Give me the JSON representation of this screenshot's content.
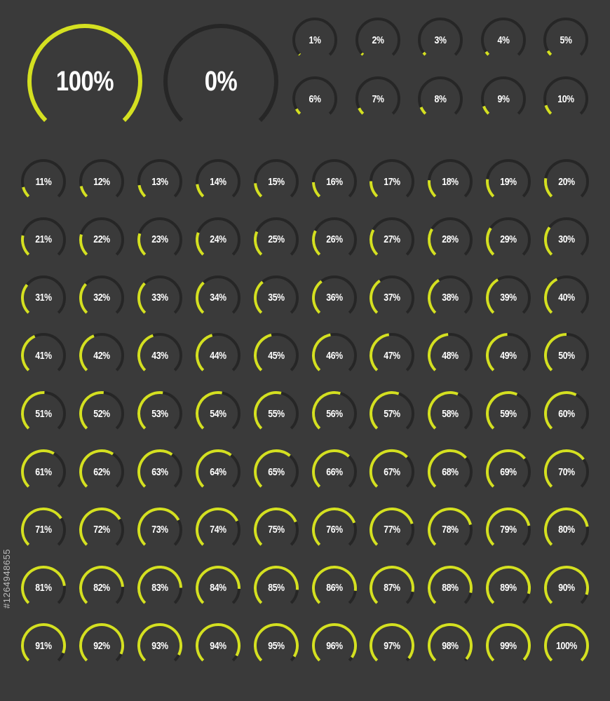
{
  "colors": {
    "background": "#3a3a3a",
    "track": "#262626",
    "progress": "#d4e021",
    "label": "#ffffff"
  },
  "large_gauges": [
    {
      "label": "100%",
      "value": 100
    },
    {
      "label": "0%",
      "value": 0
    }
  ],
  "top_small_gauges": [
    {
      "label": "1%",
      "value": 1
    },
    {
      "label": "2%",
      "value": 2
    },
    {
      "label": "3%",
      "value": 3
    },
    {
      "label": "4%",
      "value": 4
    },
    {
      "label": "5%",
      "value": 5
    },
    {
      "label": "6%",
      "value": 6
    },
    {
      "label": "7%",
      "value": 7
    },
    {
      "label": "8%",
      "value": 8
    },
    {
      "label": "9%",
      "value": 9
    },
    {
      "label": "10%",
      "value": 10
    }
  ],
  "grid_gauges": [
    {
      "label": "11%",
      "value": 11
    },
    {
      "label": "12%",
      "value": 12
    },
    {
      "label": "13%",
      "value": 13
    },
    {
      "label": "14%",
      "value": 14
    },
    {
      "label": "15%",
      "value": 15
    },
    {
      "label": "16%",
      "value": 16
    },
    {
      "label": "17%",
      "value": 17
    },
    {
      "label": "18%",
      "value": 18
    },
    {
      "label": "19%",
      "value": 19
    },
    {
      "label": "20%",
      "value": 20
    },
    {
      "label": "21%",
      "value": 21
    },
    {
      "label": "22%",
      "value": 22
    },
    {
      "label": "23%",
      "value": 23
    },
    {
      "label": "24%",
      "value": 24
    },
    {
      "label": "25%",
      "value": 25
    },
    {
      "label": "26%",
      "value": 26
    },
    {
      "label": "27%",
      "value": 27
    },
    {
      "label": "28%",
      "value": 28
    },
    {
      "label": "29%",
      "value": 29
    },
    {
      "label": "30%",
      "value": 30
    },
    {
      "label": "31%",
      "value": 31
    },
    {
      "label": "32%",
      "value": 32
    },
    {
      "label": "33%",
      "value": 33
    },
    {
      "label": "34%",
      "value": 34
    },
    {
      "label": "35%",
      "value": 35
    },
    {
      "label": "36%",
      "value": 36
    },
    {
      "label": "37%",
      "value": 37
    },
    {
      "label": "38%",
      "value": 38
    },
    {
      "label": "39%",
      "value": 39
    },
    {
      "label": "40%",
      "value": 40
    },
    {
      "label": "41%",
      "value": 41
    },
    {
      "label": "42%",
      "value": 42
    },
    {
      "label": "43%",
      "value": 43
    },
    {
      "label": "44%",
      "value": 44
    },
    {
      "label": "45%",
      "value": 45
    },
    {
      "label": "46%",
      "value": 46
    },
    {
      "label": "47%",
      "value": 47
    },
    {
      "label": "48%",
      "value": 48
    },
    {
      "label": "49%",
      "value": 49
    },
    {
      "label": "50%",
      "value": 50
    },
    {
      "label": "51%",
      "value": 51
    },
    {
      "label": "52%",
      "value": 52
    },
    {
      "label": "53%",
      "value": 53
    },
    {
      "label": "54%",
      "value": 54
    },
    {
      "label": "55%",
      "value": 55
    },
    {
      "label": "56%",
      "value": 56
    },
    {
      "label": "57%",
      "value": 57
    },
    {
      "label": "58%",
      "value": 58
    },
    {
      "label": "59%",
      "value": 59
    },
    {
      "label": "60%",
      "value": 60
    },
    {
      "label": "61%",
      "value": 61
    },
    {
      "label": "62%",
      "value": 62
    },
    {
      "label": "63%",
      "value": 63
    },
    {
      "label": "64%",
      "value": 64
    },
    {
      "label": "65%",
      "value": 65
    },
    {
      "label": "66%",
      "value": 66
    },
    {
      "label": "67%",
      "value": 67
    },
    {
      "label": "68%",
      "value": 68
    },
    {
      "label": "69%",
      "value": 69
    },
    {
      "label": "70%",
      "value": 70
    },
    {
      "label": "71%",
      "value": 71
    },
    {
      "label": "72%",
      "value": 72
    },
    {
      "label": "73%",
      "value": 73
    },
    {
      "label": "74%",
      "value": 74
    },
    {
      "label": "75%",
      "value": 75
    },
    {
      "label": "76%",
      "value": 76
    },
    {
      "label": "77%",
      "value": 77
    },
    {
      "label": "78%",
      "value": 78
    },
    {
      "label": "79%",
      "value": 79
    },
    {
      "label": "80%",
      "value": 80
    },
    {
      "label": "81%",
      "value": 81
    },
    {
      "label": "82%",
      "value": 82
    },
    {
      "label": "83%",
      "value": 83
    },
    {
      "label": "84%",
      "value": 84
    },
    {
      "label": "85%",
      "value": 85
    },
    {
      "label": "86%",
      "value": 86
    },
    {
      "label": "87%",
      "value": 87
    },
    {
      "label": "88%",
      "value": 88
    },
    {
      "label": "89%",
      "value": 89
    },
    {
      "label": "90%",
      "value": 90
    },
    {
      "label": "91%",
      "value": 91
    },
    {
      "label": "92%",
      "value": 92
    },
    {
      "label": "93%",
      "value": 93
    },
    {
      "label": "94%",
      "value": 94
    },
    {
      "label": "95%",
      "value": 95
    },
    {
      "label": "96%",
      "value": 96
    },
    {
      "label": "97%",
      "value": 97
    },
    {
      "label": "98%",
      "value": 98
    },
    {
      "label": "99%",
      "value": 99
    },
    {
      "label": "100%",
      "value": 100
    }
  ],
  "watermark": {
    "id_text": "#1264948655"
  }
}
